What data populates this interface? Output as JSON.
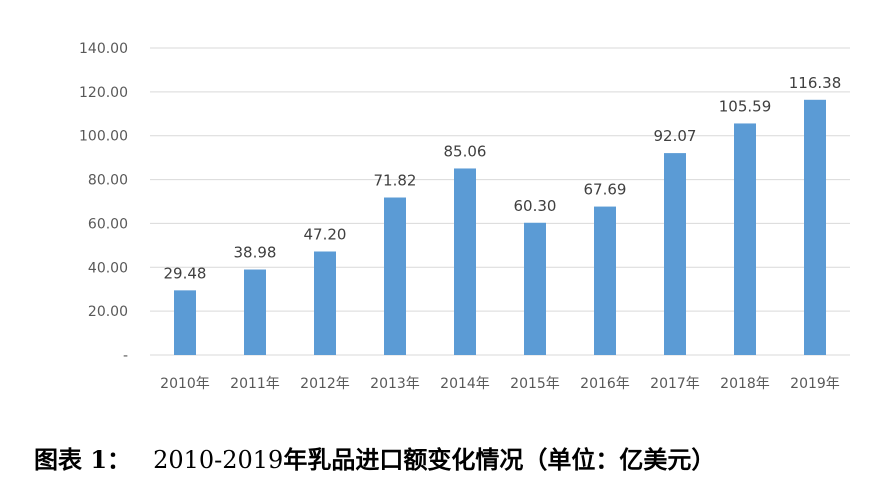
{
  "caption": {
    "label": "图表 1：",
    "years": "2010-2019",
    "text": "年乳品进口额变化情况（单位：亿美元）"
  },
  "chart_data": {
    "type": "bar",
    "title": "",
    "xlabel": "",
    "ylabel": "",
    "categories": [
      "2010年",
      "2011年",
      "2012年",
      "2013年",
      "2014年",
      "2015年",
      "2016年",
      "2017年",
      "2018年",
      "2019年"
    ],
    "values": [
      29.48,
      38.98,
      47.2,
      71.82,
      85.06,
      60.3,
      67.69,
      92.07,
      105.59,
      116.38
    ],
    "data_labels": [
      "29.48",
      "38.98",
      "47.20",
      "71.82",
      "85.06",
      "60.30",
      "67.69",
      "92.07",
      "105.59",
      "116.38"
    ],
    "ylim": [
      0,
      140
    ],
    "yticks": [
      0,
      20,
      40,
      60,
      80,
      100,
      120,
      140
    ],
    "ytick_labels": [
      "-",
      "20.00",
      "40.00",
      "60.00",
      "80.00",
      "100.00",
      "120.00",
      "140.00"
    ],
    "grid": true,
    "legend": "none",
    "bar_color": "#5b9bd5",
    "grid_color": "#d9d9d9"
  }
}
